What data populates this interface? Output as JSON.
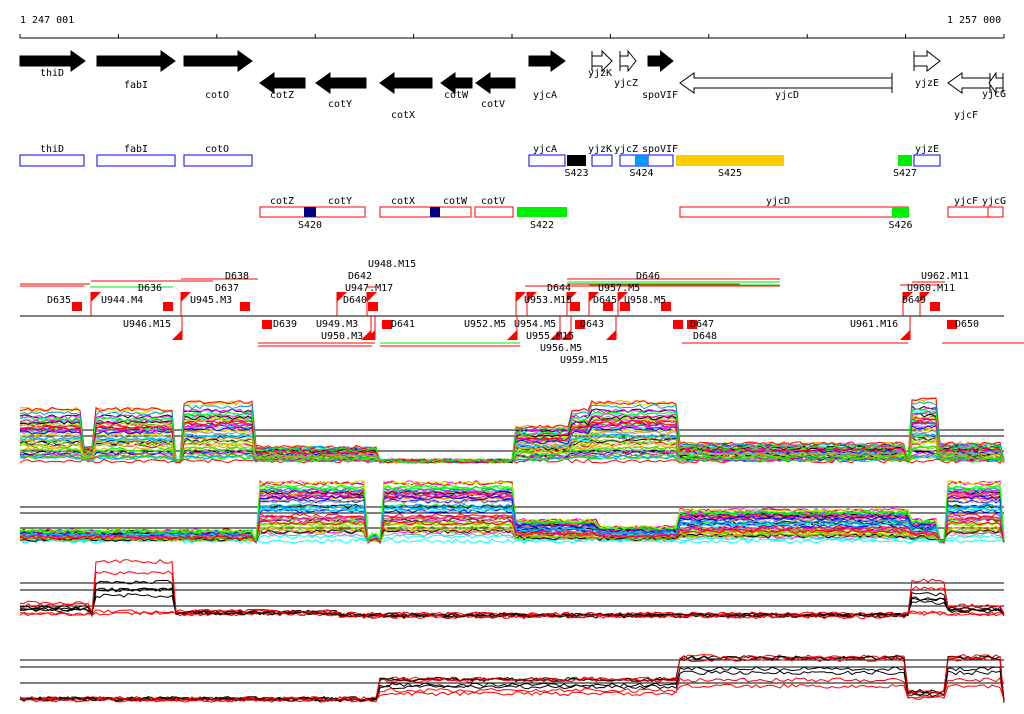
{
  "axis": {
    "start_label": "1 247 001",
    "end_label": "1 257 000"
  },
  "colors": {
    "S423": "#000000",
    "S424": "#0099ff",
    "S425": "#ffcc00",
    "S427": "#00ee00",
    "S420": "#000080",
    "S421": "#000080",
    "S422": "#00ee00",
    "S426": "#00ee00",
    "plus_box": "#0000ff",
    "minus_box": "#ff0000"
  },
  "genes": [
    {
      "name": "thiD",
      "strand": "+",
      "filled": true
    },
    {
      "name": "fabI",
      "strand": "+",
      "filled": true
    },
    {
      "name": "cotO",
      "strand": "+",
      "filled": true
    },
    {
      "name": "cotZ",
      "strand": "-",
      "filled": true
    },
    {
      "name": "cotY",
      "strand": "-",
      "filled": true
    },
    {
      "name": "cotX",
      "strand": "-",
      "filled": true
    },
    {
      "name": "cotW",
      "strand": "-",
      "filled": true
    },
    {
      "name": "cotV",
      "strand": "-",
      "filled": true
    },
    {
      "name": "yjcA",
      "strand": "+",
      "filled": true
    },
    {
      "name": "yjzK",
      "strand": "+",
      "filled": false
    },
    {
      "name": "yjcZ",
      "strand": "+",
      "filled": false
    },
    {
      "name": "spoVIF",
      "strand": "+",
      "filled": true
    },
    {
      "name": "yjcD",
      "strand": "-",
      "filled": false
    },
    {
      "name": "yjzE",
      "strand": "+",
      "filled": false
    },
    {
      "name": "yjcF",
      "strand": "-",
      "filled": false
    },
    {
      "name": "yjcG",
      "strand": "-",
      "filled": false
    }
  ],
  "plus_boxes": [
    "thiD",
    "fabI",
    "cotO",
    "yjcA",
    "yjzK",
    "yjcZ",
    "spoVIF",
    "yjzE"
  ],
  "plus_segments": [
    "S423",
    "S424",
    "S425",
    "S427"
  ],
  "minus_boxes": [
    "cotZ",
    "cotY",
    "cotX",
    "cotW",
    "cotV",
    "yjcD",
    "yjcF",
    "yjcG"
  ],
  "minus_segments": [
    "S420",
    "S422",
    "S426"
  ],
  "transcript_labels": [
    "D635",
    "U944.M4",
    "D636",
    "U945.M3",
    "D637",
    "D638",
    "D639",
    "U946.M15",
    "U947.M17",
    "U948.M15",
    "D640",
    "D642",
    "D641",
    "U949.M3",
    "U950.M3",
    "U952.M5",
    "U953.M15",
    "U954.M5",
    "U955.M15",
    "U956.M5",
    "U957.M5",
    "U958.M5",
    "U959.M15",
    "D643",
    "D644",
    "D645",
    "D646",
    "D647",
    "D648",
    "U960.M11",
    "U961.M16",
    "U962.M11",
    "D649",
    "D650"
  ]
}
